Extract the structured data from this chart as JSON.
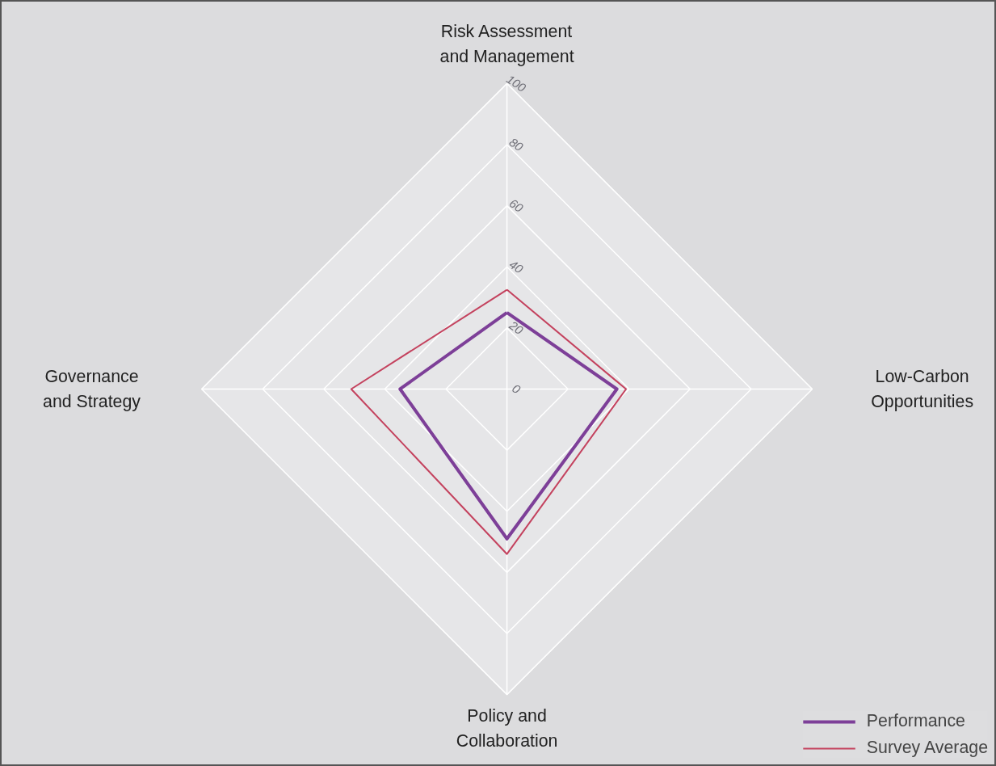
{
  "chart_data": {
    "type": "radar",
    "categories": [
      "Risk Assessment\nand Management",
      "Low-Carbon\nOpportunities",
      "Policy and\nCollaboration",
      "Governance\nand Strategy"
    ],
    "series": [
      {
        "name": "Performance",
        "color": "#7d3f98",
        "values": [
          25,
          36,
          49,
          35
        ]
      },
      {
        "name": "Survey Average",
        "color": "#c4425e",
        "values": [
          32.5,
          39,
          54,
          51
        ]
      }
    ],
    "ylim": [
      0,
      100
    ],
    "yticks": [
      0,
      20,
      40,
      60,
      80,
      100
    ],
    "grid": true,
    "legend": "bottom right"
  }
}
